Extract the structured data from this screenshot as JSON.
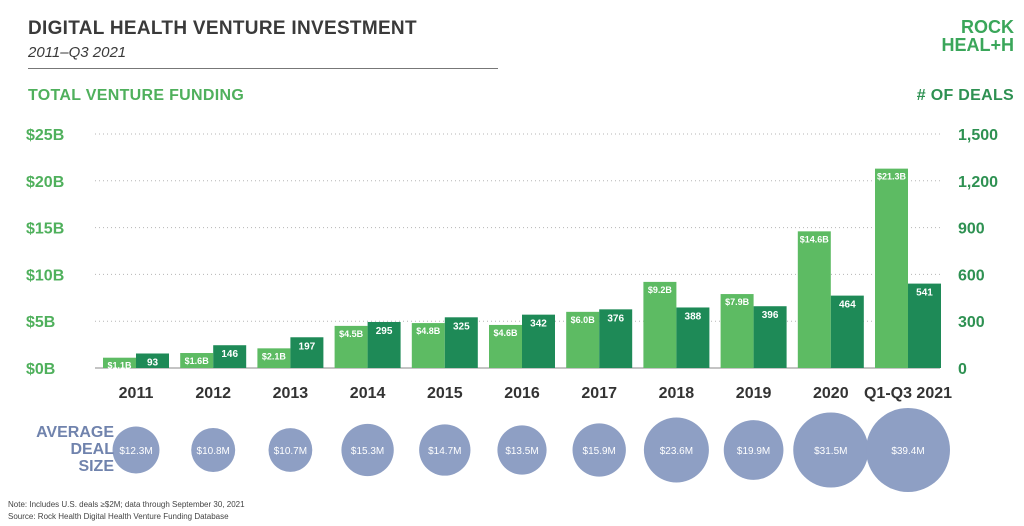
{
  "header": {
    "title": "DIGITAL HEALTH VENTURE INVESTMENT",
    "subtitle": "2011–Q3 2021"
  },
  "logo": {
    "line1": "ROCK",
    "line2": "HEAL+H"
  },
  "colors": {
    "funding_bar": "#5dbb63",
    "deals_bar": "#1e8a57",
    "left_axis_text": "#4fb05c",
    "right_axis_text": "#2e9152",
    "bubble": "#8e9fc4",
    "avg_label": "#7083ad"
  },
  "chart_data": {
    "type": "bar",
    "categories": [
      "2011",
      "2012",
      "2013",
      "2014",
      "2015",
      "2016",
      "2017",
      "2018",
      "2019",
      "2020",
      "Q1-Q3 2021"
    ],
    "series": [
      {
        "name": "TOTAL VENTURE FUNDING",
        "axis": "left",
        "values": [
          1.1,
          1.6,
          2.1,
          4.5,
          4.8,
          4.6,
          6.0,
          9.2,
          7.9,
          14.6,
          21.3
        ],
        "labels": [
          "$1.1B",
          "$1.6B",
          "$2.1B",
          "$4.5B",
          "$4.8B",
          "$4.6B",
          "$6.0B",
          "$9.2B",
          "$7.9B",
          "$14.6B",
          "$21.3B"
        ]
      },
      {
        "name": "# OF DEALS",
        "axis": "right",
        "values": [
          93,
          146,
          197,
          295,
          325,
          342,
          376,
          388,
          396,
          464,
          541
        ],
        "labels": [
          "93",
          "146",
          "197",
          "295",
          "325",
          "342",
          "376",
          "388",
          "396",
          "464",
          "541"
        ]
      }
    ],
    "left_axis": {
      "label": "TOTAL VENTURE FUNDING",
      "ylim": [
        0,
        25
      ],
      "ticks": [
        "$0B",
        "$5B",
        "$10B",
        "$15B",
        "$20B",
        "$25B"
      ]
    },
    "right_axis": {
      "label": "# OF DEALS",
      "ylim": [
        0,
        1500
      ],
      "ticks": [
        "0",
        "300",
        "600",
        "900",
        "1,200",
        "1,500"
      ]
    },
    "grid": "horizontal dotted",
    "average_deal_size": {
      "label_lines": [
        "AVERAGE",
        "DEAL",
        "SIZE"
      ],
      "values": [
        12.3,
        10.8,
        10.7,
        15.3,
        14.7,
        13.5,
        15.9,
        23.6,
        19.9,
        31.5,
        39.4
      ],
      "labels": [
        "$12.3M",
        "$10.8M",
        "$10.7M",
        "$15.3M",
        "$14.7M",
        "$13.5M",
        "$15.9M",
        "$23.6M",
        "$19.9M",
        "$31.5M",
        "$39.4M"
      ]
    }
  },
  "footer": {
    "note": "Note: Includes U.S. deals ≥$2M; data through September 30, 2021",
    "source": "Source: Rock Health Digital Health Venture Funding Database"
  }
}
